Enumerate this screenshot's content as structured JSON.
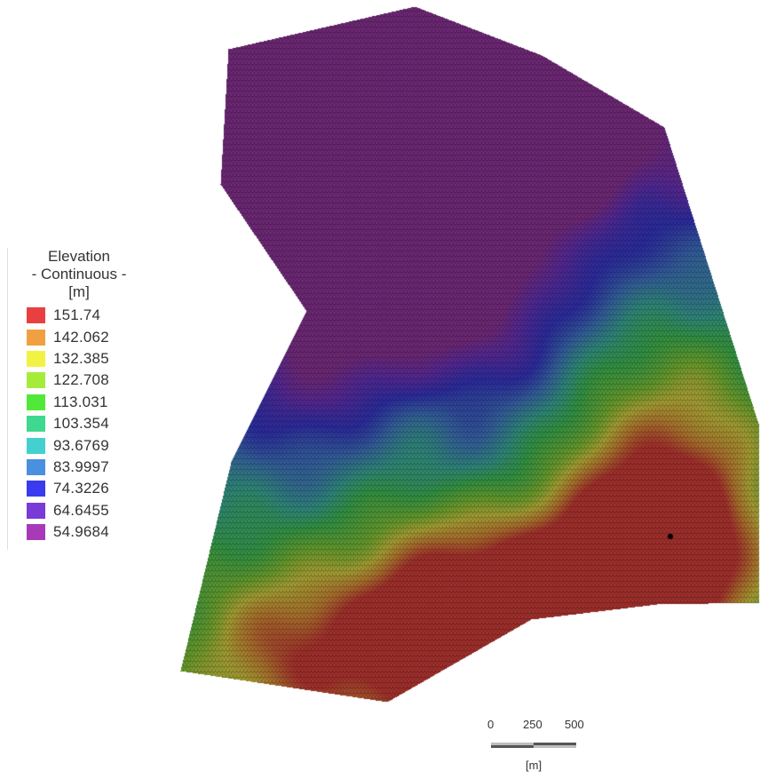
{
  "legend": {
    "title_line1": "Elevation",
    "title_line2": "- Continuous -",
    "title_line3": "[m]",
    "items": [
      {
        "label": "151.74",
        "color": "#e84040"
      },
      {
        "label": "142.062",
        "color": "#f0a040"
      },
      {
        "label": "132.385",
        "color": "#f2f245"
      },
      {
        "label": "122.708",
        "color": "#a5ec3a"
      },
      {
        "label": "113.031",
        "color": "#52e83a"
      },
      {
        "label": "103.354",
        "color": "#3ed890"
      },
      {
        "label": "93.6769",
        "color": "#45d0d0"
      },
      {
        "label": "83.9997",
        "color": "#4a90e0"
      },
      {
        "label": "74.3226",
        "color": "#3a3aee"
      },
      {
        "label": "64.6455",
        "color": "#7a3ad8"
      },
      {
        "label": "54.9684",
        "color": "#a83ab8"
      }
    ]
  },
  "scalebar": {
    "ticks": [
      "0",
      "250",
      "500"
    ],
    "unit": "[m]"
  }
}
